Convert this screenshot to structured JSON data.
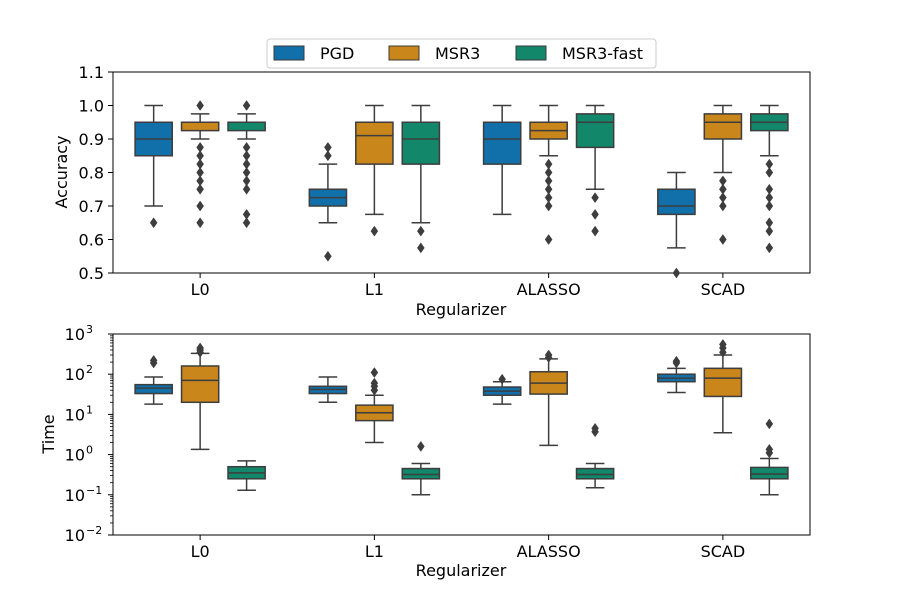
{
  "legend": {
    "items": [
      {
        "label": "PGD",
        "color": "#1170aa"
      },
      {
        "label": "MSR3",
        "color": "#c8861b"
      },
      {
        "label": "MSR3-fast",
        "color": "#12876a"
      }
    ]
  },
  "chart_data": [
    {
      "type": "box",
      "xlabel": "Regularizer",
      "ylabel": "Accuracy",
      "ylim": [
        0.5,
        1.1
      ],
      "yticks": [
        "0.5",
        "0.6",
        "0.7",
        "0.8",
        "0.9",
        "1.0",
        "1.1"
      ],
      "ytick_values": [
        0.5,
        0.6,
        0.7,
        0.8,
        0.9,
        1.0,
        1.1
      ],
      "scale": "linear",
      "categories": [
        "L0",
        "L1",
        "ALASSO",
        "SCAD"
      ],
      "series": [
        {
          "name": "PGD",
          "color": "#1170aa",
          "boxes": [
            {
              "whislo": 0.7,
              "q1": 0.85,
              "med": 0.9,
              "q3": 0.95,
              "whishi": 1.0,
              "fliers": [
                0.65
              ]
            },
            {
              "whislo": 0.65,
              "q1": 0.7,
              "med": 0.725,
              "q3": 0.75,
              "whishi": 0.825,
              "fliers": [
                0.85,
                0.875,
                0.55
              ]
            },
            {
              "whislo": 0.675,
              "q1": 0.825,
              "med": 0.9,
              "q3": 0.95,
              "whishi": 1.0,
              "fliers": []
            },
            {
              "whislo": 0.575,
              "q1": 0.675,
              "med": 0.7,
              "q3": 0.75,
              "whishi": 0.8,
              "fliers": [
                0.5
              ]
            }
          ]
        },
        {
          "name": "MSR3",
          "color": "#c8861b",
          "boxes": [
            {
              "whislo": 0.9,
              "q1": 0.925,
              "med": 0.95,
              "q3": 0.95,
              "whishi": 0.975,
              "fliers": [
                1.0,
                0.875,
                0.85,
                0.825,
                0.8,
                0.775,
                0.75,
                0.7,
                0.65
              ]
            },
            {
              "whislo": 0.675,
              "q1": 0.825,
              "med": 0.91,
              "q3": 0.95,
              "whishi": 1.0,
              "fliers": [
                0.625
              ]
            },
            {
              "whislo": 0.85,
              "q1": 0.9,
              "med": 0.925,
              "q3": 0.95,
              "whishi": 1.0,
              "fliers": [
                0.825,
                0.8,
                0.775,
                0.75,
                0.725,
                0.7,
                0.6
              ]
            },
            {
              "whislo": 0.8,
              "q1": 0.9,
              "med": 0.95,
              "q3": 0.975,
              "whishi": 1.0,
              "fliers": [
                0.775,
                0.75,
                0.725,
                0.7,
                0.6
              ]
            }
          ]
        },
        {
          "name": "MSR3-fast",
          "color": "#12876a",
          "boxes": [
            {
              "whislo": 0.9,
              "q1": 0.925,
              "med": 0.95,
              "q3": 0.95,
              "whishi": 0.975,
              "fliers": [
                1.0,
                0.875,
                0.85,
                0.825,
                0.8,
                0.775,
                0.75,
                0.675,
                0.65
              ]
            },
            {
              "whislo": 0.65,
              "q1": 0.825,
              "med": 0.9,
              "q3": 0.95,
              "whishi": 1.0,
              "fliers": [
                0.625,
                0.575
              ]
            },
            {
              "whislo": 0.75,
              "q1": 0.875,
              "med": 0.95,
              "q3": 0.975,
              "whishi": 1.0,
              "fliers": [
                0.725,
                0.675,
                0.625
              ]
            },
            {
              "whislo": 0.85,
              "q1": 0.925,
              "med": 0.95,
              "q3": 0.975,
              "whishi": 1.0,
              "fliers": [
                0.825,
                0.8,
                0.75,
                0.725,
                0.7,
                0.65,
                0.625,
                0.575
              ]
            }
          ]
        }
      ]
    },
    {
      "type": "box",
      "xlabel": "Regularizer",
      "ylabel": "Time",
      "ylim": [
        0.01,
        1000
      ],
      "yticks": [
        "10",
        "10",
        "10",
        "10",
        "10",
        "10"
      ],
      "ytick_exponents": [
        "−2",
        "−1",
        "0",
        "1",
        "2",
        "3"
      ],
      "ytick_values": [
        0.01,
        0.1,
        1,
        10,
        100,
        1000
      ],
      "scale": "log",
      "categories": [
        "L0",
        "L1",
        "ALASSO",
        "SCAD"
      ],
      "series": [
        {
          "name": "PGD",
          "color": "#1170aa",
          "boxes": [
            {
              "whislo": 18,
              "q1": 33,
              "med": 45,
              "q3": 55,
              "whishi": 85,
              "fliers": [
                190,
                220
              ]
            },
            {
              "whislo": 20,
              "q1": 33,
              "med": 42,
              "q3": 50,
              "whishi": 85,
              "fliers": []
            },
            {
              "whislo": 18,
              "q1": 30,
              "med": 38,
              "q3": 48,
              "whishi": 65,
              "fliers": [
                75
              ]
            },
            {
              "whislo": 35,
              "q1": 65,
              "med": 80,
              "q3": 100,
              "whishi": 140,
              "fliers": [
                190,
                210
              ]
            }
          ]
        },
        {
          "name": "MSR3",
          "color": "#c8861b",
          "boxes": [
            {
              "whislo": 1.35,
              "q1": 20,
              "med": 70,
              "q3": 160,
              "whishi": 330,
              "fliers": [
                350,
                400,
                450
              ]
            },
            {
              "whislo": 2,
              "q1": 7,
              "med": 11,
              "q3": 17,
              "whishi": 30,
              "fliers": [
                40,
                50,
                60,
                110
              ]
            },
            {
              "whislo": 1.7,
              "q1": 32,
              "med": 60,
              "q3": 115,
              "whishi": 240,
              "fliers": [
                260,
                300
              ]
            },
            {
              "whislo": 3.5,
              "q1": 28,
              "med": 80,
              "q3": 140,
              "whishi": 300,
              "fliers": [
                350,
                450,
                550
              ]
            }
          ]
        },
        {
          "name": "MSR3-fast",
          "color": "#12876a",
          "boxes": [
            {
              "whislo": 0.13,
              "q1": 0.25,
              "med": 0.35,
              "q3": 0.5,
              "whishi": 0.7,
              "fliers": []
            },
            {
              "whislo": 0.1,
              "q1": 0.25,
              "med": 0.32,
              "q3": 0.45,
              "whishi": 0.6,
              "fliers": [
                1.6
              ]
            },
            {
              "whislo": 0.15,
              "q1": 0.25,
              "med": 0.32,
              "q3": 0.45,
              "whishi": 0.6,
              "fliers": [
                3.7,
                4.5
              ]
            },
            {
              "whislo": 0.1,
              "q1": 0.25,
              "med": 0.33,
              "q3": 0.48,
              "whishi": 0.8,
              "fliers": [
                1.1,
                1.35,
                5.8
              ]
            }
          ]
        }
      ]
    }
  ]
}
